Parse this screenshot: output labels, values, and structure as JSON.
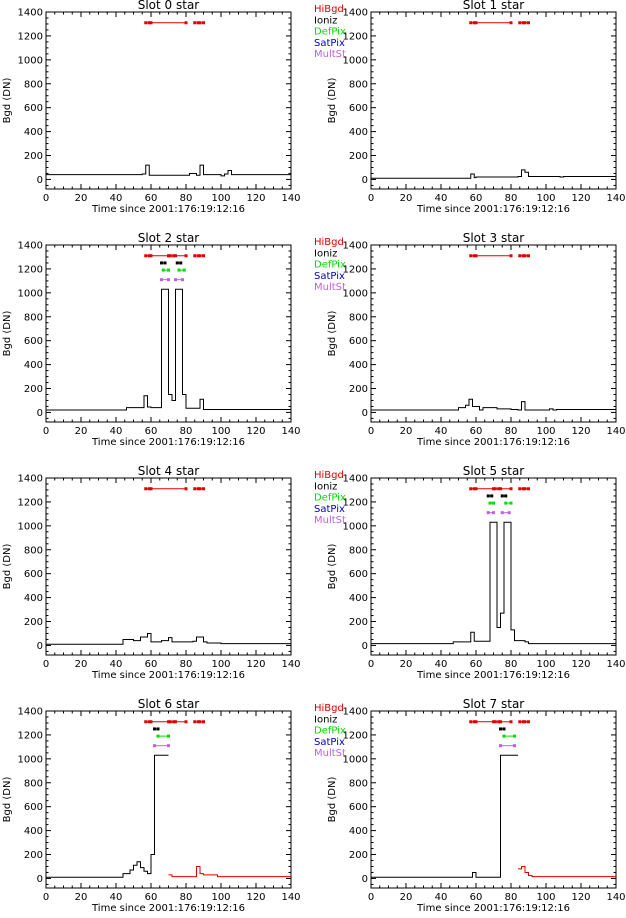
{
  "colors": {
    "hibgd": "#e00000",
    "ioniz": "#000000",
    "defpix": "#00e000",
    "satpix": "#0000cc",
    "multst": "#c060e0",
    "trace": "#000000",
    "trace_flagged": "#e00000"
  },
  "legend": [
    "HiBgd",
    "Ioniz",
    "DefPix",
    "SatPix",
    "MultSt"
  ],
  "chart_data": [
    {
      "type": "line",
      "title": "Slot 0 star",
      "xlabel": "Time since 2001:176:19:12:16",
      "ylabel": "Bgd (DN)",
      "xlim": [
        0,
        140
      ],
      "ylim": [
        -80,
        1400
      ],
      "xticks": [
        "0",
        "20",
        "40",
        "60",
        "80",
        "100",
        "120",
        "140"
      ],
      "yticks": [
        "0",
        "200",
        "400",
        "600",
        "800",
        "1000",
        "1200",
        "1400"
      ],
      "series": [
        {
          "x": [
            0,
            40,
            55,
            57,
            59,
            80,
            82,
            86,
            88,
            90,
            100,
            102,
            104,
            106,
            140
          ],
          "y": [
            40,
            40,
            45,
            120,
            35,
            35,
            50,
            35,
            120,
            40,
            30,
            45,
            75,
            40,
            30
          ]
        }
      ],
      "flags": {
        "hibgd": {
          "y": 1310,
          "segments": [
            [
              57,
              59
            ],
            [
              60,
              80
            ],
            [
              85,
              87
            ],
            [
              88,
              90
            ]
          ]
        }
      }
    },
    {
      "type": "line",
      "title": "Slot 1 star",
      "xlabel": "Time since 2001:176:19:12:16",
      "ylabel": "Bgd (DN)",
      "xlim": [
        0,
        140
      ],
      "ylim": [
        -80,
        1400
      ],
      "xticks": [
        "0",
        "20",
        "40",
        "60",
        "80",
        "100",
        "120",
        "140"
      ],
      "yticks": [
        "0",
        "200",
        "400",
        "600",
        "800",
        "1000",
        "1200",
        "1400"
      ],
      "series": [
        {
          "x": [
            0,
            55,
            57,
            59,
            60,
            62,
            84,
            86,
            88,
            90,
            108,
            110,
            140
          ],
          "y": [
            10,
            10,
            45,
            15,
            20,
            20,
            25,
            80,
            60,
            25,
            20,
            25,
            15
          ]
        }
      ],
      "flags": {
        "hibgd": {
          "y": 1310,
          "segments": [
            [
              57,
              59
            ],
            [
              60,
              80
            ],
            [
              85,
              87
            ],
            [
              88,
              90
            ]
          ]
        }
      }
    },
    {
      "type": "line",
      "title": "Slot 2 star",
      "xlabel": "Time since 2001:176:19:12:16",
      "ylabel": "Bgd (DN)",
      "xlim": [
        0,
        140
      ],
      "ylim": [
        -80,
        1400
      ],
      "xticks": [
        "0",
        "20",
        "40",
        "60",
        "80",
        "100",
        "120",
        "140"
      ],
      "yticks": [
        "0",
        "200",
        "400",
        "600",
        "800",
        "1000",
        "1200",
        "1400"
      ],
      "series": [
        {
          "x": [
            0,
            44,
            46,
            56,
            58,
            60,
            66,
            70,
            72,
            74,
            78,
            80,
            88,
            90,
            140
          ],
          "y": [
            20,
            20,
            40,
            140,
            45,
            40,
            1030,
            150,
            100,
            1030,
            150,
            35,
            110,
            25,
            20
          ]
        }
      ],
      "flags": {
        "hibgd": {
          "y": 1310,
          "segments": [
            [
              57,
              59
            ],
            [
              60,
              70
            ],
            [
              71,
              73
            ],
            [
              74,
              80
            ],
            [
              85,
              87
            ],
            [
              88,
              90
            ]
          ]
        },
        "ioniz": {
          "y": 1250,
          "segments": [
            [
              66,
              68
            ],
            [
              75,
              77
            ]
          ]
        },
        "defpix": {
          "y": 1190,
          "segments": [
            [
              67,
              70
            ],
            [
              76,
              79
            ]
          ]
        },
        "multst": {
          "y": 1110,
          "segments": [
            [
              66,
              70
            ],
            [
              74,
              78
            ]
          ]
        }
      }
    },
    {
      "type": "line",
      "title": "Slot 3 star",
      "xlabel": "Time since 2001:176:19:12:16",
      "ylabel": "Bgd (DN)",
      "xlim": [
        0,
        140
      ],
      "ylim": [
        -80,
        1400
      ],
      "xticks": [
        "0",
        "20",
        "40",
        "60",
        "80",
        "100",
        "120",
        "140"
      ],
      "yticks": [
        "0",
        "200",
        "400",
        "600",
        "800",
        "1000",
        "1200",
        "1400"
      ],
      "series": [
        {
          "x": [
            0,
            40,
            50,
            54,
            56,
            58,
            62,
            64,
            72,
            80,
            84,
            86,
            88,
            100,
            102,
            104,
            106,
            140
          ],
          "y": [
            20,
            20,
            40,
            60,
            110,
            50,
            20,
            40,
            30,
            25,
            20,
            90,
            20,
            20,
            30,
            20,
            25,
            15
          ]
        }
      ],
      "flags": {
        "hibgd": {
          "y": 1310,
          "segments": [
            [
              57,
              59
            ],
            [
              60,
              80
            ],
            [
              85,
              87
            ],
            [
              88,
              90
            ]
          ]
        }
      }
    },
    {
      "type": "line",
      "title": "Slot 4 star",
      "xlabel": "Time since 2001:176:19:12:16",
      "ylabel": "Bgd (DN)",
      "xlim": [
        0,
        140
      ],
      "ylim": [
        -80,
        1400
      ],
      "xticks": [
        "0",
        "20",
        "40",
        "60",
        "80",
        "100",
        "120",
        "140"
      ],
      "yticks": [
        "0",
        "200",
        "400",
        "600",
        "800",
        "1000",
        "1200",
        "1400"
      ],
      "series": [
        {
          "x": [
            0,
            44,
            50,
            54,
            58,
            60,
            66,
            70,
            72,
            84,
            86,
            90,
            92,
            100,
            140
          ],
          "y": [
            10,
            50,
            40,
            70,
            100,
            30,
            40,
            65,
            30,
            35,
            70,
            30,
            20,
            15,
            15
          ]
        }
      ],
      "flags": {
        "hibgd": {
          "y": 1310,
          "segments": [
            [
              57,
              59
            ],
            [
              60,
              80
            ],
            [
              85,
              87
            ],
            [
              88,
              90
            ]
          ]
        }
      }
    },
    {
      "type": "line",
      "title": "Slot 5 star",
      "xlabel": "Time since 2001:176:19:12:16",
      "ylabel": "Bgd (DN)",
      "xlim": [
        0,
        140
      ],
      "ylim": [
        -80,
        1400
      ],
      "xticks": [
        "0",
        "20",
        "40",
        "60",
        "80",
        "100",
        "120",
        "140"
      ],
      "yticks": [
        "0",
        "200",
        "400",
        "600",
        "800",
        "1000",
        "1200",
        "1400"
      ],
      "series": [
        {
          "x": [
            0,
            45,
            47,
            55,
            57,
            59,
            68,
            72,
            74,
            76,
            80,
            82,
            88,
            90,
            140
          ],
          "y": [
            15,
            15,
            30,
            30,
            110,
            35,
            1030,
            150,
            270,
            1030,
            130,
            40,
            30,
            15,
            15
          ]
        }
      ],
      "flags": {
        "hibgd": {
          "y": 1310,
          "segments": [
            [
              57,
              59
            ],
            [
              60,
              70
            ],
            [
              71,
              73
            ],
            [
              74,
              80
            ],
            [
              85,
              87
            ],
            [
              88,
              90
            ]
          ]
        },
        "ioniz": {
          "y": 1250,
          "segments": [
            [
              67,
              69
            ],
            [
              75,
              77
            ]
          ]
        },
        "defpix": {
          "y": 1190,
          "segments": [
            [
              68,
              70
            ],
            [
              77,
              80
            ]
          ]
        },
        "multst": {
          "y": 1110,
          "segments": [
            [
              67,
              70
            ],
            [
              75,
              79
            ]
          ]
        }
      }
    },
    {
      "type": "line",
      "title": "Slot 6 star",
      "xlabel": "Time since 2001:176:19:12:16",
      "ylabel": "Bgd (DN)",
      "xlim": [
        0,
        140
      ],
      "ylim": [
        -80,
        1400
      ],
      "xticks": [
        "0",
        "20",
        "40",
        "60",
        "80",
        "100",
        "120",
        "140"
      ],
      "yticks": [
        "0",
        "200",
        "400",
        "600",
        "800",
        "1000",
        "1200",
        "1400"
      ],
      "series": [
        {
          "x": [
            0,
            40,
            44,
            48,
            50,
            52,
            54,
            56,
            58,
            60,
            62,
            64,
            70
          ],
          "y": [
            10,
            10,
            40,
            70,
            110,
            140,
            90,
            60,
            40,
            200,
            1030,
            1030,
            1030
          ]
        },
        {
          "x": [
            70,
            72,
            84,
            86,
            88,
            90,
            96,
            98,
            140
          ],
          "y": [
            30,
            15,
            15,
            100,
            40,
            30,
            30,
            15,
            15
          ],
          "flagged": true
        }
      ],
      "flags": {
        "hibgd": {
          "y": 1310,
          "segments": [
            [
              57,
              59
            ],
            [
              60,
              70
            ],
            [
              71,
              73
            ],
            [
              74,
              80
            ],
            [
              85,
              87
            ],
            [
              88,
              90
            ]
          ]
        },
        "ioniz": {
          "y": 1250,
          "segments": [
            [
              62,
              64
            ]
          ]
        },
        "defpix": {
          "y": 1190,
          "segments": [
            [
              64,
              70
            ]
          ]
        },
        "multst": {
          "y": 1110,
          "segments": [
            [
              62,
              70
            ]
          ]
        }
      }
    },
    {
      "type": "line",
      "title": "Slot 7 star",
      "xlabel": "Time since 2001:176:19:12:16",
      "ylabel": "Bgd (DN)",
      "xlim": [
        0,
        140
      ],
      "ylim": [
        -80,
        1400
      ],
      "xticks": [
        "0",
        "20",
        "40",
        "60",
        "80",
        "100",
        "120",
        "140"
      ],
      "yticks": [
        "0",
        "200",
        "400",
        "600",
        "800",
        "1000",
        "1200",
        "1400"
      ],
      "series": [
        {
          "x": [
            0,
            56,
            58,
            60,
            62,
            74,
            76,
            78,
            82,
            84
          ],
          "y": [
            10,
            10,
            50,
            10,
            10,
            1030,
            1030,
            1030,
            1030,
            1030
          ]
        },
        {
          "x": [
            84,
            86,
            88,
            90,
            92,
            140
          ],
          "y": [
            80,
            100,
            50,
            25,
            15,
            15
          ],
          "flagged": true
        }
      ],
      "flags": {
        "hibgd": {
          "y": 1310,
          "segments": [
            [
              57,
              59
            ],
            [
              60,
              70
            ],
            [
              71,
              73
            ],
            [
              74,
              80
            ],
            [
              85,
              87
            ],
            [
              88,
              90
            ]
          ]
        },
        "ioniz": {
          "y": 1250,
          "segments": [
            [
              74,
              76
            ]
          ]
        },
        "defpix": {
          "y": 1190,
          "segments": [
            [
              76,
              82
            ]
          ]
        },
        "multst": {
          "y": 1110,
          "segments": [
            [
              74,
              82
            ]
          ]
        }
      }
    }
  ]
}
